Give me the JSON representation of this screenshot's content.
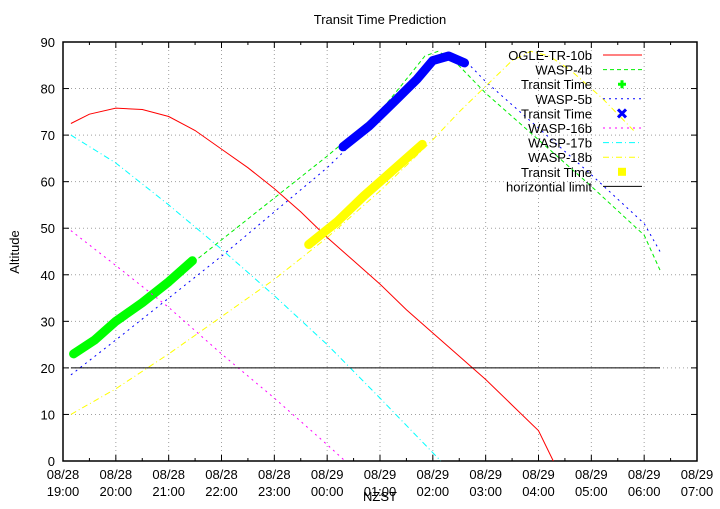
{
  "chart_data": {
    "type": "line",
    "title": "Transit Time Prediction",
    "xlabel": "NZST",
    "ylabel": "Altitude",
    "ylim": [
      0,
      90
    ],
    "yticks": [
      0,
      10,
      20,
      30,
      40,
      50,
      60,
      70,
      80,
      90
    ],
    "xlim_hours_from_start": [
      0,
      12
    ],
    "xticks": [
      {
        "date": "08/28",
        "time": "19:00"
      },
      {
        "date": "08/28",
        "time": "20:00"
      },
      {
        "date": "08/28",
        "time": "21:00"
      },
      {
        "date": "08/28",
        "time": "22:00"
      },
      {
        "date": "08/28",
        "time": "23:00"
      },
      {
        "date": "08/29",
        "time": "00:00"
      },
      {
        "date": "08/29",
        "time": "01:00"
      },
      {
        "date": "08/29",
        "time": "02:00"
      },
      {
        "date": "08/29",
        "time": "03:00"
      },
      {
        "date": "08/29",
        "time": "04:00"
      },
      {
        "date": "08/29",
        "time": "05:00"
      },
      {
        "date": "08/29",
        "time": "06:00"
      },
      {
        "date": "08/29",
        "time": "07:00"
      }
    ],
    "grid": true,
    "legend_position": "top-right",
    "series": [
      {
        "name": "OGLE-TR-10b",
        "color": "#ff0000",
        "style": "solid",
        "points": [
          [
            0.15,
            72.5
          ],
          [
            0.5,
            74.5
          ],
          [
            1.0,
            75.8
          ],
          [
            1.5,
            75.5
          ],
          [
            2.0,
            74
          ],
          [
            2.5,
            71
          ],
          [
            3.0,
            67
          ],
          [
            3.5,
            63
          ],
          [
            4.0,
            58.5
          ],
          [
            4.5,
            53.5
          ],
          [
            5.0,
            48
          ],
          [
            5.5,
            43
          ],
          [
            6.0,
            38
          ],
          [
            6.5,
            32.5
          ],
          [
            7.0,
            27.5
          ],
          [
            7.5,
            22.5
          ],
          [
            8.0,
            17.5
          ],
          [
            8.5,
            12
          ],
          [
            9.0,
            6.5
          ],
          [
            9.28,
            0
          ]
        ]
      },
      {
        "name": "WASP-4b",
        "color": "#00ee00",
        "style": "dashed",
        "points": [
          [
            0.15,
            22.5
          ],
          [
            1.0,
            30
          ],
          [
            2.0,
            38.5
          ],
          [
            3.0,
            47.5
          ],
          [
            4.0,
            56.5
          ],
          [
            5.0,
            65.5
          ],
          [
            6.0,
            75
          ],
          [
            6.5,
            82
          ],
          [
            6.85,
            87
          ],
          [
            7.1,
            88
          ],
          [
            7.4,
            86
          ],
          [
            8.0,
            79
          ],
          [
            9.0,
            69
          ],
          [
            10.0,
            59
          ],
          [
            11.0,
            48.5
          ],
          [
            11.3,
            41
          ]
        ]
      },
      {
        "name": "Transit Time",
        "color": "#00ff00",
        "style": "points",
        "marker": "plus",
        "points": [
          [
            0.2,
            23
          ],
          [
            0.6,
            26
          ],
          [
            1.0,
            30
          ],
          [
            1.5,
            34
          ],
          [
            2.0,
            38.5
          ],
          [
            2.45,
            43
          ]
        ]
      },
      {
        "name": "WASP-5b",
        "color": "#0000ff",
        "style": "dotted",
        "points": [
          [
            0.15,
            18.5
          ],
          [
            1.0,
            26
          ],
          [
            2.0,
            35
          ],
          [
            3.0,
            44
          ],
          [
            4.0,
            53.5
          ],
          [
            5.0,
            63
          ],
          [
            6.0,
            74
          ],
          [
            6.5,
            80
          ],
          [
            6.9,
            85
          ],
          [
            7.15,
            87
          ],
          [
            7.4,
            86.8
          ],
          [
            7.7,
            85
          ],
          [
            8.0,
            81.5
          ],
          [
            9.0,
            71.5
          ],
          [
            10.0,
            61.5
          ],
          [
            11.0,
            51
          ],
          [
            11.3,
            45
          ]
        ]
      },
      {
        "name": "Transit Time",
        "color": "#0000ff",
        "style": "points",
        "marker": "cross",
        "points": [
          [
            5.3,
            67.5
          ],
          [
            5.8,
            72
          ],
          [
            6.3,
            77.5
          ],
          [
            6.7,
            82
          ],
          [
            7.0,
            86
          ],
          [
            7.3,
            87
          ],
          [
            7.6,
            85.5
          ]
        ]
      },
      {
        "name": "WASP-16b",
        "color": "#ff00ff",
        "style": "dotted",
        "points": [
          [
            0.15,
            49.5
          ],
          [
            1.0,
            42
          ],
          [
            2.0,
            33
          ],
          [
            3.0,
            23
          ],
          [
            4.0,
            13.5
          ],
          [
            5.0,
            3.5
          ],
          [
            5.34,
            0
          ]
        ]
      },
      {
        "name": "WASP-17b",
        "color": "#00ffff",
        "style": "dashdot",
        "points": [
          [
            0.15,
            70
          ],
          [
            1.0,
            64
          ],
          [
            2.0,
            55
          ],
          [
            3.0,
            45.5
          ],
          [
            4.0,
            35.5
          ],
          [
            5.0,
            25
          ],
          [
            6.0,
            13.5
          ],
          [
            7.15,
            0
          ]
        ]
      },
      {
        "name": "WASP-18b",
        "color": "#ffff00",
        "style": "dashdot",
        "points": [
          [
            0.15,
            10
          ],
          [
            1.0,
            15.5
          ],
          [
            2.0,
            23
          ],
          [
            3.0,
            31
          ],
          [
            4.0,
            39
          ],
          [
            5.0,
            48
          ],
          [
            6.0,
            58
          ],
          [
            7.0,
            69
          ],
          [
            7.5,
            75
          ],
          [
            8.0,
            80.5
          ],
          [
            8.5,
            86
          ],
          [
            8.85,
            88
          ],
          [
            9.2,
            87
          ],
          [
            9.6,
            84
          ],
          [
            10.2,
            78
          ],
          [
            10.8,
            71
          ]
        ]
      },
      {
        "name": "Transit Time",
        "color": "#ffff00",
        "style": "points",
        "marker": "square",
        "points": [
          [
            4.65,
            46.5
          ],
          [
            5.2,
            51.5
          ],
          [
            5.7,
            57
          ],
          [
            6.2,
            62
          ],
          [
            6.8,
            68
          ]
        ]
      },
      {
        "name": "horizontial limit",
        "color": "#000000",
        "style": "solid",
        "points": [
          [
            0.15,
            20
          ],
          [
            11.3,
            20
          ]
        ]
      }
    ]
  }
}
